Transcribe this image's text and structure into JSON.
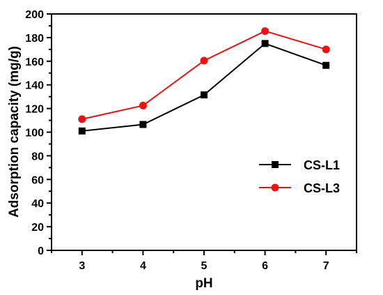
{
  "chart_data": {
    "type": "line",
    "title": "",
    "xlabel": "pH",
    "ylabel": "Adsorption capacity (mg/g)",
    "x": [
      3,
      4,
      5,
      6,
      7
    ],
    "xlim": [
      2.5,
      7.5
    ],
    "ylim": [
      0,
      200
    ],
    "x_ticks": [
      "3",
      "4",
      "5",
      "6",
      "7"
    ],
    "y_ticks": [
      "0",
      "20",
      "40",
      "60",
      "80",
      "100",
      "120",
      "140",
      "160",
      "180",
      "200"
    ],
    "grid": false,
    "legend_position": "right",
    "series": [
      {
        "name": "CS-L1",
        "color": "#000000",
        "marker": "square",
        "values": [
          101,
          106.5,
          131.5,
          175,
          156.5
        ]
      },
      {
        "name": "CS-L3",
        "color": "#ee1111",
        "marker": "circle",
        "values": [
          111,
          122.5,
          160.5,
          185.5,
          170
        ]
      }
    ]
  }
}
